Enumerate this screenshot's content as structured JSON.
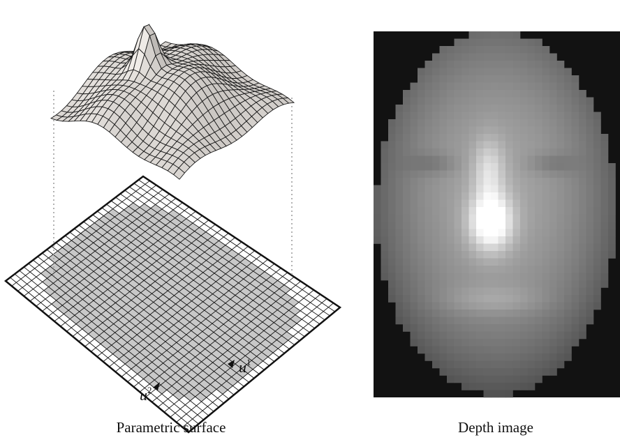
{
  "figure": {
    "panels": [
      {
        "caption": "Parametric surface"
      },
      {
        "caption": "Depth image"
      }
    ],
    "axes": [
      {
        "symbol": "u",
        "index": "2"
      },
      {
        "symbol": "u",
        "index": "1"
      }
    ]
  }
}
